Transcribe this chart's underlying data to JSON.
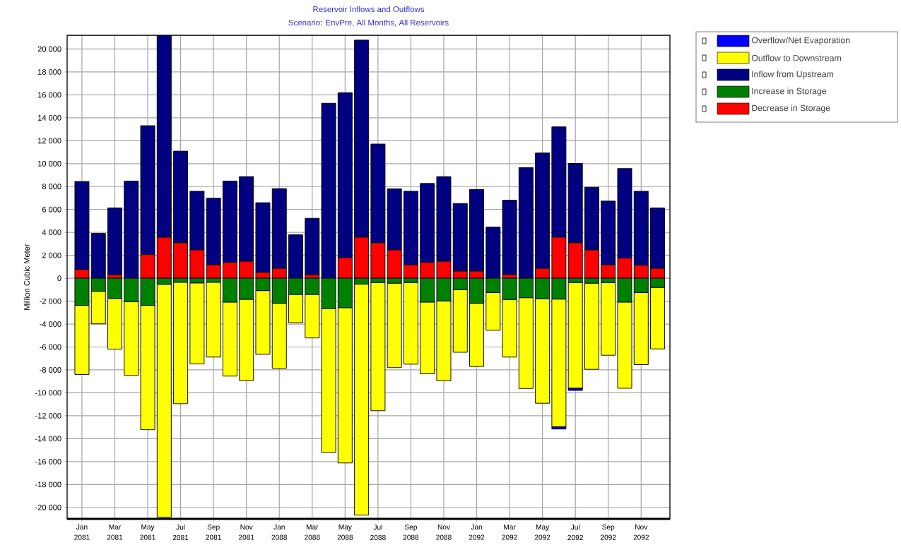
{
  "chart_data": {
    "type": "bar",
    "stacked": true,
    "title": "Reservoir Inflows and Outflows",
    "subtitle": "Scenario: EnvPre, All Months, All Reservoirs",
    "ylabel": "Million Cubic Meter",
    "categories": [
      "Jan 2081",
      null,
      "Mar 2081",
      null,
      "May 2081",
      null,
      "Jul 2081",
      null,
      "Sep 2081",
      null,
      "Nov 2081",
      null,
      "Jan 2088",
      null,
      "Mar 2088",
      null,
      "May 2088",
      null,
      "Jul 2088",
      null,
      "Sep 2088",
      null,
      "Nov 2088",
      null,
      "Jan 2092",
      null,
      "Mar 2092",
      null,
      "May 2092",
      null,
      "Jul 2092",
      null,
      "Sep 2092",
      null,
      "Nov 2092",
      null
    ],
    "series": [
      {
        "name": "Decrease in Storage",
        "color": "#ff0000",
        "values": [
          760,
          0,
          300,
          0,
          2060,
          3580,
          3090,
          2470,
          1170,
          1380,
          1480,
          510,
          860,
          0,
          300,
          0,
          1790,
          3580,
          3090,
          2470,
          1170,
          1380,
          1480,
          620,
          620,
          0,
          310,
          0,
          860,
          3580,
          3090,
          2470,
          1170,
          1750,
          1130,
          860
        ]
      },
      {
        "name": "Increase in Storage",
        "color": "#008000",
        "values": [
          -2370,
          -1140,
          -1760,
          -2060,
          -2370,
          -530,
          -350,
          -410,
          -350,
          -2080,
          -1840,
          -1080,
          -2190,
          -1410,
          -1410,
          -2640,
          -2570,
          -510,
          -370,
          -430,
          -370,
          -2080,
          -1980,
          -1000,
          -2190,
          -1250,
          -1860,
          -1700,
          -1780,
          -1820,
          -370,
          -430,
          -370,
          -2080,
          -1250,
          -800
        ]
      },
      {
        "name": "Inflow from Upstream",
        "color": "#000080",
        "values": [
          7680,
          3910,
          5830,
          8480,
          11250,
          17620,
          8000,
          5120,
          5810,
          7100,
          7390,
          6080,
          6960,
          3790,
          4930,
          15270,
          14400,
          17200,
          8620,
          5330,
          6420,
          6890,
          7390,
          5900,
          7120,
          4460,
          6500,
          9650,
          10070,
          9630,
          6930,
          5470,
          5560,
          7820,
          6460,
          5270
        ]
      },
      {
        "name": "Outflow to Downstream",
        "color": "#ffff00",
        "values": [
          -6030,
          -2840,
          -4430,
          -6420,
          -10850,
          -20330,
          -10600,
          -7070,
          -6530,
          -6460,
          -7090,
          -5560,
          -5680,
          -2470,
          -3800,
          -12560,
          -13550,
          -20160,
          -11190,
          -7370,
          -7130,
          -6260,
          -6970,
          -5460,
          -5510,
          -3290,
          -5020,
          -7920,
          -9130,
          -11140,
          -9220,
          -7520,
          -6350,
          -7520,
          -6290,
          -5370
        ]
      },
      {
        "name": "Overflow/Net Evaporation",
        "color": "#0000ff",
        "values": [
          0,
          0,
          0,
          0,
          0,
          0,
          0,
          0,
          0,
          0,
          0,
          0,
          0,
          0,
          0,
          0,
          0,
          0,
          0,
          0,
          0,
          0,
          0,
          0,
          0,
          0,
          0,
          0,
          0,
          -200,
          -200,
          0,
          0,
          0,
          0,
          0
        ]
      }
    ],
    "ylim": [
      -21000,
      21200
    ],
    "yticks": [
      {
        "value": -20000,
        "label": "-20 000"
      },
      {
        "value": -18000,
        "label": "-18 000"
      },
      {
        "value": -16000,
        "label": "-16 000"
      },
      {
        "value": -14000,
        "label": "-14 000"
      },
      {
        "value": -12000,
        "label": "-12 000"
      },
      {
        "value": -10000,
        "label": "-10 000"
      },
      {
        "value": -8000,
        "label": "-8 000"
      },
      {
        "value": -6000,
        "label": "-6 000"
      },
      {
        "value": -4000,
        "label": "-4 000"
      },
      {
        "value": -2000,
        "label": "-2 000"
      },
      0,
      {
        "value": 2000,
        "label": "2 000"
      },
      {
        "value": 4000,
        "label": "4 000"
      },
      {
        "value": 6000,
        "label": "6 000"
      },
      {
        "value": 8000,
        "label": "8 000"
      },
      {
        "value": 10000,
        "label": "10 000"
      },
      {
        "value": 12000,
        "label": "12 000"
      },
      {
        "value": 14000,
        "label": "14 000"
      },
      {
        "value": 16000,
        "label": "16 000"
      },
      {
        "value": 18000,
        "label": "18 000"
      },
      {
        "value": 20000,
        "label": "20 000"
      }
    ],
    "grid": true,
    "legend": "top right"
  }
}
